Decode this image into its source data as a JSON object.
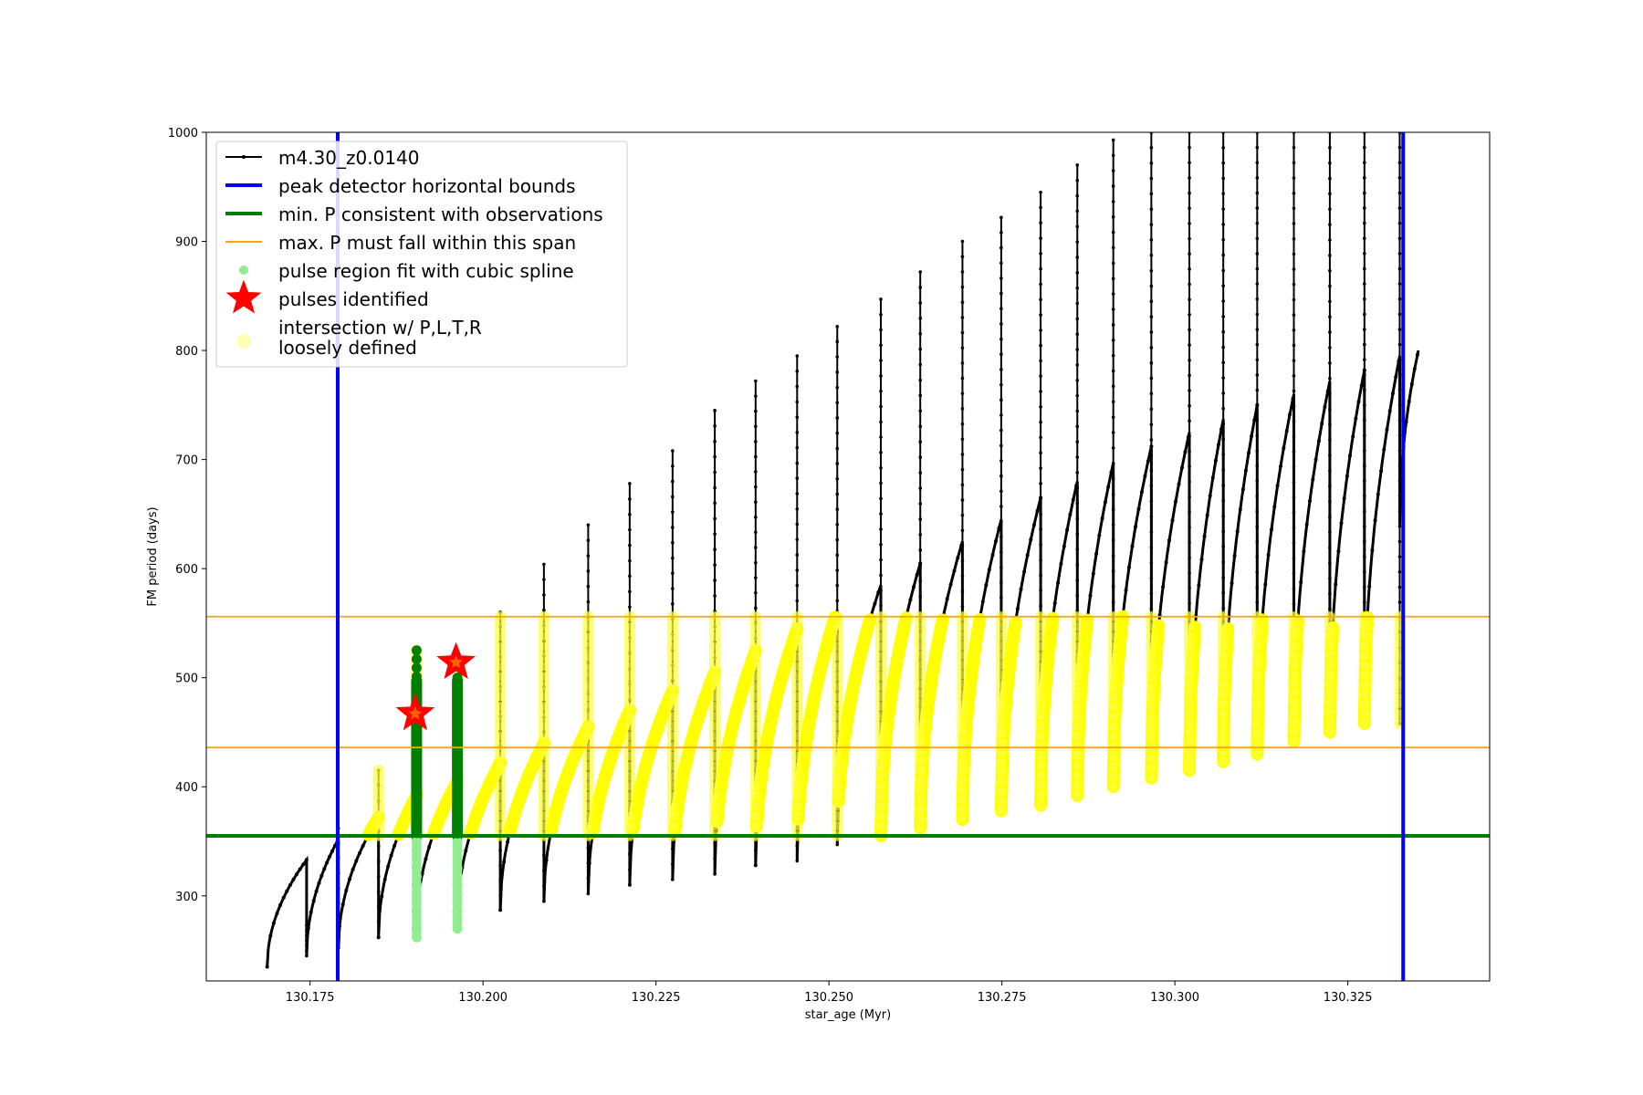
{
  "chart_data": {
    "type": "line",
    "title": "",
    "xlabel": "star_age (Myr)",
    "ylabel": "FM period (days)",
    "xlim": [
      130.16,
      130.3455
    ],
    "ylim": [
      222,
      1000
    ],
    "x_ticks": [
      "130.175",
      "130.200",
      "130.225",
      "130.250",
      "130.275",
      "130.300",
      "130.325"
    ],
    "y_ticks": [
      "300",
      "400",
      "500",
      "600",
      "700",
      "800",
      "900",
      "1000"
    ],
    "grid": false,
    "legend_position": "top-left",
    "series": [
      {
        "name": "m4.30_z0.0140",
        "color": "#000000",
        "kind": "line-with-small-markers",
        "cycles": [
          {
            "pulse_age": 130.1745,
            "start_period": 235,
            "peak_period": 333,
            "spike_top": 273
          },
          {
            "pulse_age": 130.1791,
            "start_period": 245,
            "peak_period": 352,
            "spike_top": 362
          },
          {
            "pulse_age": 130.1849,
            "start_period": 252,
            "peak_period": 372,
            "spike_top": 415
          },
          {
            "pulse_age": 130.1904,
            "start_period": 262,
            "peak_period": 392,
            "spike_top": 525
          },
          {
            "pulse_age": 130.1963,
            "start_period": 270,
            "peak_period": 405,
            "spike_top": 500
          },
          {
            "pulse_age": 130.2025,
            "start_period": 278,
            "peak_period": 422,
            "spike_top": 560
          },
          {
            "pulse_age": 130.2088,
            "start_period": 287,
            "peak_period": 440,
            "spike_top": 604
          },
          {
            "pulse_age": 130.2152,
            "start_period": 295,
            "peak_period": 455,
            "spike_top": 640
          },
          {
            "pulse_age": 130.2212,
            "start_period": 302,
            "peak_period": 470,
            "spike_top": 678
          },
          {
            "pulse_age": 130.2274,
            "start_period": 310,
            "peak_period": 488,
            "spike_top": 708
          },
          {
            "pulse_age": 130.2335,
            "start_period": 315,
            "peak_period": 505,
            "spike_top": 745
          },
          {
            "pulse_age": 130.2394,
            "start_period": 320,
            "peak_period": 525,
            "spike_top": 772
          },
          {
            "pulse_age": 130.2454,
            "start_period": 328,
            "peak_period": 545,
            "spike_top": 795
          },
          {
            "pulse_age": 130.2512,
            "start_period": 332,
            "peak_period": 562,
            "spike_top": 822
          },
          {
            "pulse_age": 130.2575,
            "start_period": 347,
            "peak_period": 585,
            "spike_top": 847
          },
          {
            "pulse_age": 130.2632,
            "start_period": 355,
            "peak_period": 605,
            "spike_top": 872
          },
          {
            "pulse_age": 130.2693,
            "start_period": 362,
            "peak_period": 625,
            "spike_top": 900
          },
          {
            "pulse_age": 130.2749,
            "start_period": 370,
            "peak_period": 645,
            "spike_top": 922
          },
          {
            "pulse_age": 130.2806,
            "start_period": 378,
            "peak_period": 665,
            "spike_top": 945
          },
          {
            "pulse_age": 130.2859,
            "start_period": 383,
            "peak_period": 680,
            "spike_top": 970
          },
          {
            "pulse_age": 130.2911,
            "start_period": 392,
            "peak_period": 697,
            "spike_top": 993
          },
          {
            "pulse_age": 130.2966,
            "start_period": 400,
            "peak_period": 712,
            "spike_top": 1000
          },
          {
            "pulse_age": 130.3021,
            "start_period": 408,
            "peak_period": 725,
            "spike_top": 1000
          },
          {
            "pulse_age": 130.307,
            "start_period": 415,
            "peak_period": 737,
            "spike_top": 1000
          },
          {
            "pulse_age": 130.3119,
            "start_period": 423,
            "peak_period": 750,
            "spike_top": 1000
          },
          {
            "pulse_age": 130.3172,
            "start_period": 430,
            "peak_period": 760,
            "spike_top": 1000
          },
          {
            "pulse_age": 130.3224,
            "start_period": 442,
            "peak_period": 772,
            "spike_top": 1000
          },
          {
            "pulse_age": 130.3274,
            "start_period": 450,
            "peak_period": 782,
            "spike_top": 1000
          },
          {
            "pulse_age": 130.3325,
            "start_period": 458,
            "peak_period": 795,
            "spike_top": 1000
          }
        ],
        "final_branch": {
          "age_start": 130.3325,
          "age_end": 130.3352,
          "period_start": 640,
          "period_end": 800
        }
      },
      {
        "name": "peak detector horizontal bounds",
        "color": "#0000ff",
        "kind": "vertical-lines",
        "x": [
          130.179,
          130.333
        ]
      },
      {
        "name": "min. P consistent with observations",
        "color": "#008000",
        "kind": "horizontal-line",
        "y": 355
      },
      {
        "name": "max. P must fall within this span",
        "color": "#ffa500",
        "kind": "horizontal-lines",
        "y": [
          436,
          556
        ]
      },
      {
        "name": "pulse region fit with cubic spline",
        "color": "#90ee90",
        "dark_color": "#008000",
        "kind": "dense-points",
        "columns": [
          {
            "x": 130.1904,
            "y_min": 262,
            "y_max": 525
          },
          {
            "x": 130.1963,
            "y_min": 270,
            "y_max": 500
          }
        ]
      },
      {
        "name": "pulses identified",
        "color": "#ff0000",
        "kind": "star-markers",
        "points": [
          {
            "x": 130.1902,
            "y": 467
          },
          {
            "x": 130.1961,
            "y": 514
          }
        ]
      },
      {
        "name": "intersection w/ P,L,T,R\nloosely defined",
        "color": "#ffff00",
        "kind": "dense-points",
        "region": {
          "y_min": 355,
          "y_max": 556
        }
      }
    ]
  }
}
